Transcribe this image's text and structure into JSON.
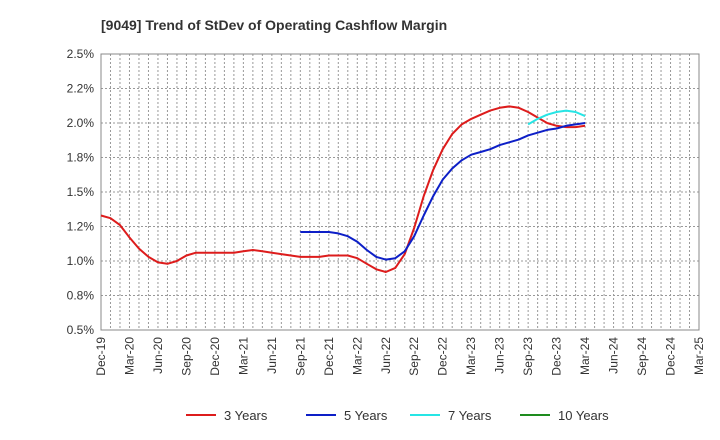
{
  "chart_data": {
    "type": "line",
    "title": "[9049]  Trend of StDev of Operating Cashflow Margin",
    "xlabel": "",
    "ylabel": "",
    "ylim": [
      0.5,
      2.5
    ],
    "y_ticks": [
      "0.5%",
      "0.8%",
      "1.0%",
      "1.2%",
      "1.5%",
      "1.8%",
      "2.0%",
      "2.2%",
      "2.5%"
    ],
    "x_tick_labels": [
      "Dec-19",
      "Mar-20",
      "Jun-20",
      "Sep-20",
      "Dec-20",
      "Mar-21",
      "Jun-21",
      "Sep-21",
      "Dec-21",
      "Mar-22",
      "Jun-22",
      "Sep-22",
      "Dec-22",
      "Mar-23",
      "Jun-23",
      "Sep-23",
      "Dec-23",
      "Mar-24",
      "Jun-24",
      "Sep-24",
      "Dec-24",
      "Mar-25"
    ],
    "x_months": [
      "2019-12",
      "2020-01",
      "2020-02",
      "2020-03",
      "2020-04",
      "2020-05",
      "2020-06",
      "2020-07",
      "2020-08",
      "2020-09",
      "2020-10",
      "2020-11",
      "2020-12",
      "2021-01",
      "2021-02",
      "2021-03",
      "2021-04",
      "2021-05",
      "2021-06",
      "2021-07",
      "2021-08",
      "2021-09",
      "2021-10",
      "2021-11",
      "2021-12",
      "2022-01",
      "2022-02",
      "2022-03",
      "2022-04",
      "2022-05",
      "2022-06",
      "2022-07",
      "2022-08",
      "2022-09",
      "2022-10",
      "2022-11",
      "2022-12",
      "2023-01",
      "2023-02",
      "2023-03",
      "2023-04",
      "2023-05",
      "2023-06",
      "2023-07",
      "2023-08",
      "2023-09",
      "2023-10",
      "2023-11",
      "2023-12",
      "2024-01",
      "2024-02",
      "2024-03",
      "2024-04",
      "2024-05",
      "2024-06",
      "2024-07",
      "2024-08",
      "2024-09",
      "2024-10",
      "2024-11",
      "2024-12",
      "2025-01",
      "2025-02",
      "2025-03"
    ],
    "grid": true,
    "legend_position": "bottom",
    "series": [
      {
        "name": "3 Years",
        "color": "#dd1c1c",
        "values": [
          1.33,
          1.31,
          1.26,
          1.17,
          1.09,
          1.03,
          0.99,
          0.98,
          1.0,
          1.04,
          1.06,
          1.06,
          1.06,
          1.06,
          1.06,
          1.07,
          1.08,
          1.07,
          1.06,
          1.05,
          1.04,
          1.03,
          1.03,
          1.03,
          1.04,
          1.04,
          1.04,
          1.02,
          0.98,
          0.94,
          0.92,
          0.95,
          1.05,
          1.24,
          1.47,
          1.66,
          1.81,
          1.92,
          1.99,
          2.03,
          2.06,
          2.09,
          2.11,
          2.12,
          2.11,
          2.08,
          2.04,
          2.0,
          1.98,
          1.97,
          1.97,
          1.98,
          null,
          null,
          null,
          null,
          null,
          null,
          null,
          null,
          null,
          null,
          null,
          null
        ]
      },
      {
        "name": "5 Years",
        "color": "#0d1fc7",
        "values": [
          null,
          null,
          null,
          null,
          null,
          null,
          null,
          null,
          null,
          null,
          null,
          null,
          null,
          null,
          null,
          null,
          null,
          null,
          null,
          null,
          null,
          1.21,
          1.21,
          1.21,
          1.21,
          1.2,
          1.18,
          1.14,
          1.08,
          1.03,
          1.01,
          1.02,
          1.07,
          1.18,
          1.33,
          1.47,
          1.59,
          1.67,
          1.73,
          1.77,
          1.79,
          1.81,
          1.84,
          1.86,
          1.88,
          1.91,
          1.93,
          1.95,
          1.96,
          1.98,
          1.99,
          2.0,
          null,
          null,
          null,
          null,
          null,
          null,
          null,
          null,
          null,
          null,
          null,
          null
        ]
      },
      {
        "name": "7 Years",
        "color": "#26e5e5",
        "values": [
          null,
          null,
          null,
          null,
          null,
          null,
          null,
          null,
          null,
          null,
          null,
          null,
          null,
          null,
          null,
          null,
          null,
          null,
          null,
          null,
          null,
          null,
          null,
          null,
          null,
          null,
          null,
          null,
          null,
          null,
          null,
          null,
          null,
          null,
          null,
          null,
          null,
          null,
          null,
          null,
          null,
          null,
          null,
          null,
          null,
          1.99,
          2.03,
          2.06,
          2.08,
          2.09,
          2.08,
          2.05,
          null,
          null,
          null,
          null,
          null,
          null,
          null,
          null,
          null,
          null,
          null,
          null
        ]
      },
      {
        "name": "10 Years",
        "color": "#1e8c1e",
        "values": []
      }
    ]
  }
}
